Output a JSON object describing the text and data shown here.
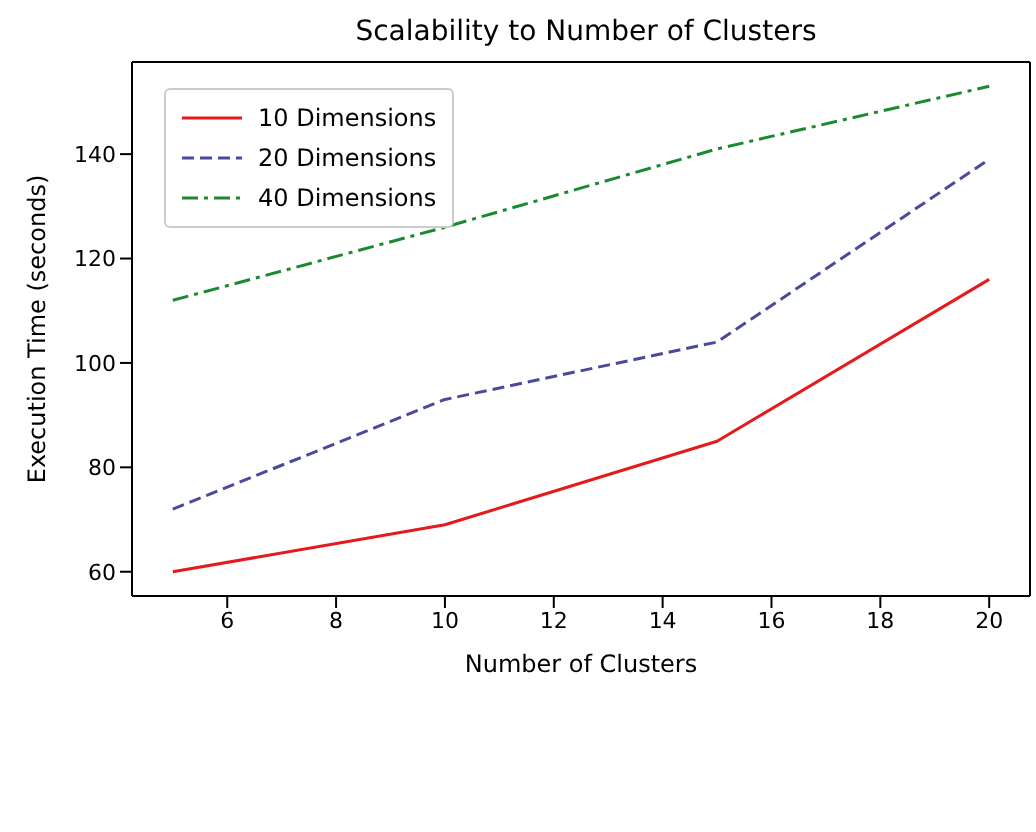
{
  "chart_data": {
    "type": "line",
    "title": "Scalability to Number of Clusters",
    "xlabel": "Number of Clusters",
    "ylabel": "Execution Time (seconds)",
    "x": [
      5,
      10,
      15,
      20
    ],
    "series": [
      {
        "name": "10 Dimensions",
        "color": "#e41a1c",
        "values": [
          60,
          69,
          85,
          116
        ],
        "line_style": "solid"
      },
      {
        "name": "20 Dimensions",
        "color": "#4a4a9c",
        "values": [
          72,
          93,
          104,
          139
        ],
        "line_style": "dashed"
      },
      {
        "name": "40 Dimensions",
        "color": "#1b8a2e",
        "values": [
          112,
          126,
          141,
          153
        ],
        "line_style": "dashdot"
      }
    ],
    "xlim": [
      4.25,
      20.75
    ],
    "xticks": [
      6,
      8,
      10,
      12,
      14,
      16,
      18,
      20
    ],
    "ylim": [
      55.35,
      157.65
    ],
    "yticks": [
      60,
      80,
      100,
      120,
      140
    ],
    "grid": false,
    "legend": "top left",
    "marker": "none"
  }
}
